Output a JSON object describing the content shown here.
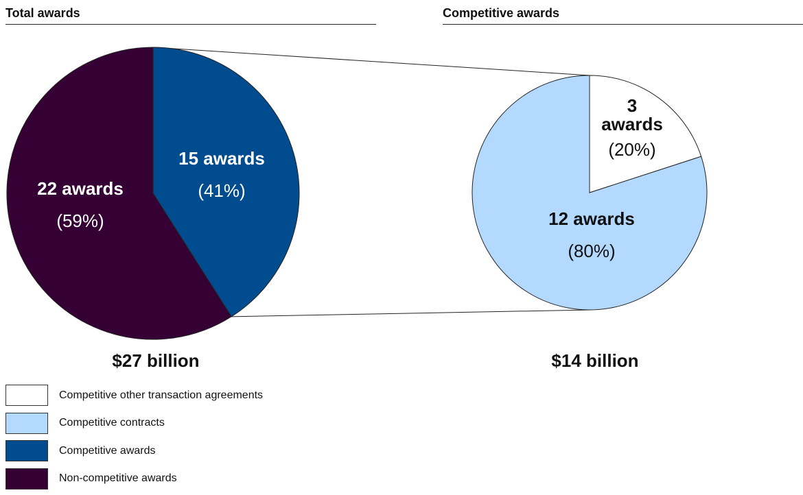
{
  "left_panel": {
    "title": "Total awards",
    "total": "$27 billion"
  },
  "right_panel": {
    "title": "Competitive awards",
    "total": "$14 billion"
  },
  "chart_data": [
    {
      "type": "pie",
      "title": "Total awards",
      "total_label": "$27 billion",
      "slices": [
        {
          "name": "Competitive awards",
          "awards": 15,
          "label": "15 awards",
          "percent": 41,
          "percent_label": "(41%)",
          "color": "#004C8E"
        },
        {
          "name": "Non-competitive awards",
          "awards": 22,
          "label": "22 awards",
          "percent": 59,
          "percent_label": "(59%)",
          "color": "#350033"
        }
      ]
    },
    {
      "type": "pie",
      "title": "Competitive awards",
      "total_label": "$14 billion",
      "slices": [
        {
          "name": "Competitive other transaction agreements",
          "awards": 3,
          "label": "3 awards",
          "percent": 20,
          "percent_label": "(20%)",
          "color": "#FFFFFF"
        },
        {
          "name": "Competitive contracts",
          "awards": 12,
          "label": "12 awards",
          "percent": 80,
          "percent_label": "(80%)",
          "color": "#B3D9FF"
        }
      ]
    }
  ],
  "legend": [
    {
      "label": "Competitive other transaction agreements",
      "color": "#FFFFFF"
    },
    {
      "label": "Competitive contracts",
      "color": "#B3D9FF"
    },
    {
      "label": "Competitive awards",
      "color": "#004C8E"
    },
    {
      "label": "Non-competitive awards",
      "color": "#350033"
    }
  ]
}
